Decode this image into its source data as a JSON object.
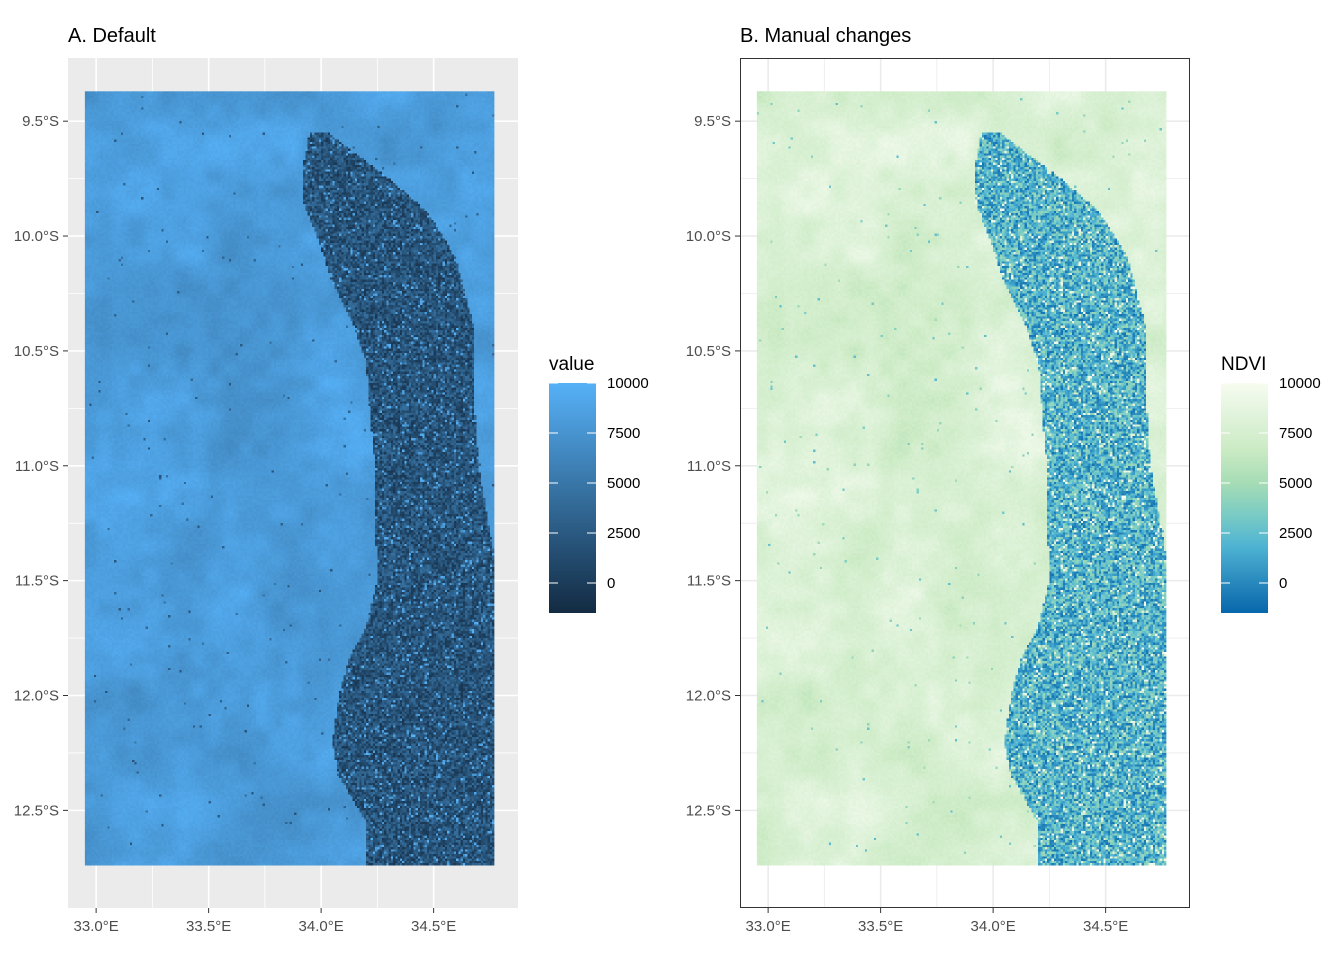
{
  "chart_data": [
    {
      "type": "heatmap",
      "title": "A. Default",
      "xlabel": "",
      "ylabel": "",
      "x_ticks": [
        33.0,
        33.5,
        34.0,
        34.5
      ],
      "x_tick_labels": [
        "33.0°E",
        "33.5°E",
        "34.0°E",
        "34.5°E"
      ],
      "y_ticks": [
        -9.5,
        -10.0,
        -10.5,
        -11.0,
        -11.5,
        -12.0,
        -12.5
      ],
      "y_tick_labels": [
        "9.5°S",
        "10.0°S",
        "10.5°S",
        "11.0°S",
        "11.5°S",
        "12.0°S",
        "12.5°S"
      ],
      "xlim": [
        32.875,
        34.875
      ],
      "ylim": [
        -12.925,
        -9.225
      ],
      "raster_extent": {
        "x": [
          32.95,
          34.77
        ],
        "y": [
          -12.74,
          -9.37
        ]
      },
      "panel_background": "#ebebeb",
      "grid": true,
      "grid_color": "#ffffff",
      "panel_border": false,
      "legend": {
        "title": "value",
        "position": "right",
        "breaks": [
          10000,
          7500,
          5000,
          2500,
          0
        ],
        "break_labels": [
          "10000",
          "7500",
          "5000",
          "2500",
          "0"
        ],
        "range": [
          -1500,
          10000
        ],
        "colors": [
          "#132b43",
          "#56b1f7"
        ]
      },
      "land_value": 8200,
      "lake_value": 1200,
      "lake_noise": 2500
    },
    {
      "type": "heatmap",
      "title": "B. Manual changes",
      "xlabel": "",
      "ylabel": "",
      "x_ticks": [
        33.0,
        33.5,
        34.0,
        34.5
      ],
      "x_tick_labels": [
        "33.0°E",
        "33.5°E",
        "34.0°E",
        "34.5°E"
      ],
      "y_ticks": [
        -9.5,
        -10.0,
        -10.5,
        -11.0,
        -11.5,
        -12.0,
        -12.5
      ],
      "y_tick_labels": [
        "9.5°S",
        "10.0°S",
        "10.5°S",
        "11.0°S",
        "11.5°S",
        "12.0°S",
        "12.5°S"
      ],
      "xlim": [
        32.875,
        34.875
      ],
      "ylim": [
        -12.925,
        -9.225
      ],
      "raster_extent": {
        "x": [
          32.95,
          34.77
        ],
        "y": [
          -12.74,
          -9.37
        ]
      },
      "panel_background": "#ffffff",
      "grid": true,
      "grid_color": "#ebebeb",
      "panel_border": true,
      "legend": {
        "title": "NDVI",
        "position": "right",
        "breaks": [
          10000,
          7500,
          5000,
          2500,
          0
        ],
        "break_labels": [
          "10000",
          "7500",
          "5000",
          "2500",
          "0"
        ],
        "range": [
          -1500,
          10000
        ],
        "colors": [
          "#0868ac",
          "#2b8cbe",
          "#4eb3d3",
          "#7bccc4",
          "#a8ddb5",
          "#ccebc5",
          "#e0f3db",
          "#f7fcf0"
        ]
      },
      "land_value": 7800,
      "lake_value": 1000,
      "lake_noise": 2800
    }
  ]
}
